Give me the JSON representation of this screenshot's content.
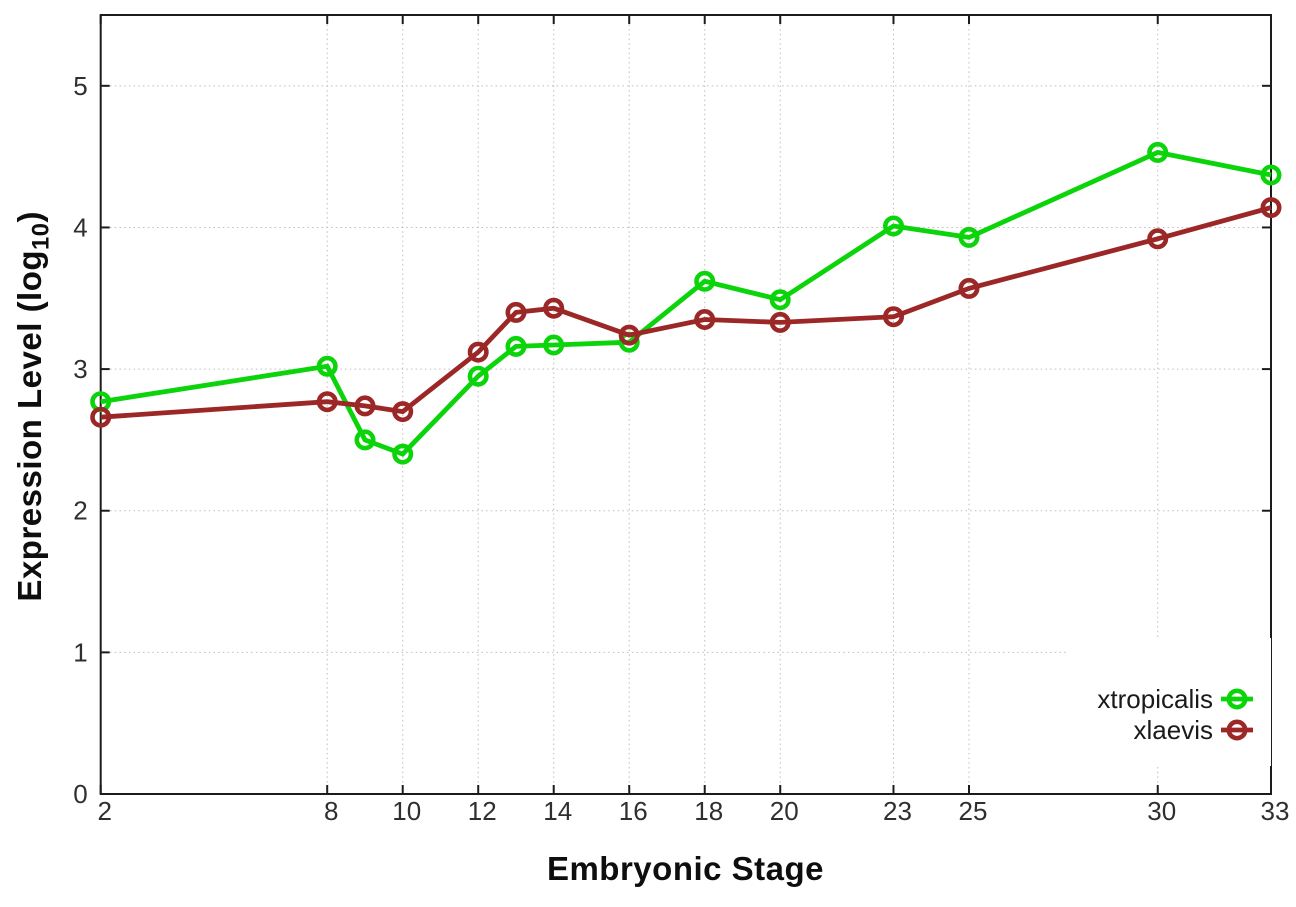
{
  "colors": {
    "background": "#ffffff",
    "axis": "#1c1c1c",
    "grid": "#bdbdbd",
    "tick_label": "#2f2f2f",
    "series_xtropicalis": "#0bd40b",
    "series_xlaevis": "#9c2727"
  },
  "chart_data": {
    "type": "line",
    "title": "",
    "xlabel": "Embryonic Stage",
    "ylabel": "Expression Level (log10)",
    "ylabel_parts": {
      "main": "Expression Level (log",
      "sub": "10",
      "close": ")"
    },
    "x_ticks": [
      2,
      8,
      10,
      12,
      14,
      16,
      18,
      20,
      23,
      25,
      30,
      33
    ],
    "y_ticks": [
      0,
      1,
      2,
      3,
      4,
      5
    ],
    "xlim": [
      2,
      33
    ],
    "ylim": [
      0,
      5.5
    ],
    "grid": "dotted",
    "marker": "open-circle",
    "legend": {
      "position": "inside-bottom-right",
      "opaque": true
    },
    "x": [
      2,
      8,
      9,
      10,
      12,
      13,
      14,
      16,
      18,
      20,
      23,
      25,
      30,
      33
    ],
    "series": [
      {
        "name": "xtropicalis",
        "color": "#0bd40b",
        "values": [
          2.77,
          3.02,
          2.5,
          2.4,
          2.95,
          3.16,
          3.17,
          3.19,
          3.62,
          3.49,
          4.01,
          3.93,
          4.53,
          4.37
        ]
      },
      {
        "name": "xlaevis",
        "color": "#9c2727",
        "values": [
          2.66,
          2.77,
          2.74,
          2.7,
          3.12,
          3.4,
          3.43,
          3.24,
          3.35,
          3.33,
          3.37,
          3.57,
          3.92,
          4.14
        ]
      }
    ]
  }
}
